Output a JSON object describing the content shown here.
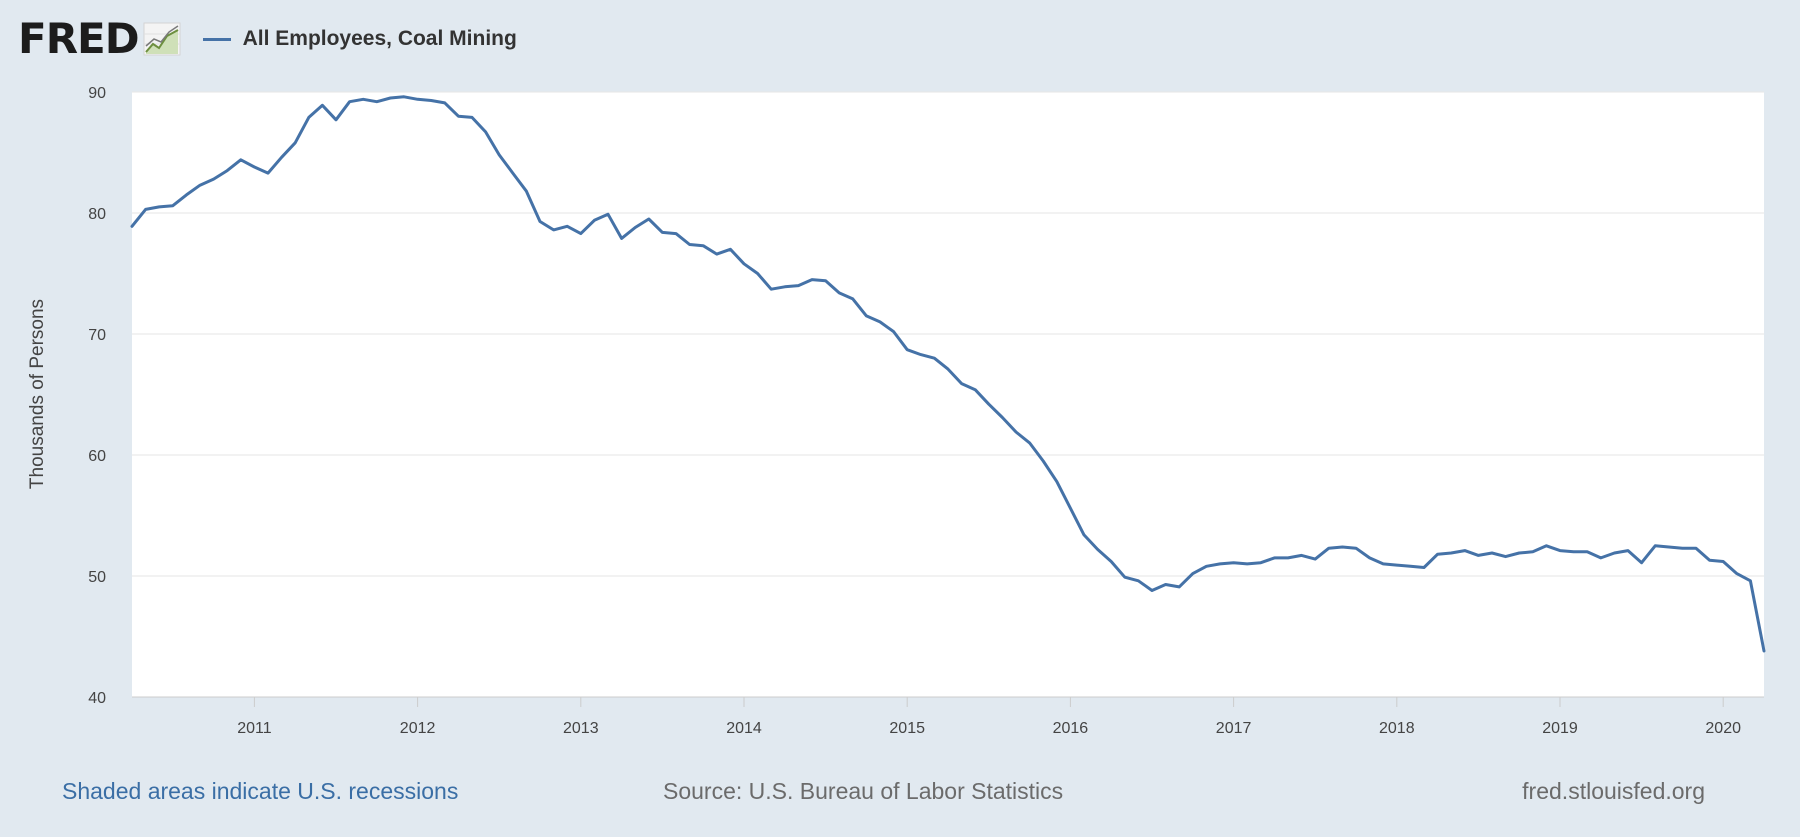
{
  "header": {
    "logo_text": "FRED",
    "logo_icon": "line-chart-icon",
    "series_title": "All Employees, Coal Mining",
    "series_color": "#4572a7"
  },
  "footer": {
    "recession_note": "Shaded areas indicate U.S. recessions",
    "source": "Source: U.S. Bureau of Labor Statistics",
    "site": "fred.stlouisfed.org"
  },
  "chart_data": {
    "type": "line",
    "title": "All Employees, Coal Mining",
    "xlabel": "",
    "ylabel": "Thousands of Persons",
    "ylim": [
      40,
      90
    ],
    "yticks": [
      40,
      50,
      60,
      70,
      80,
      90
    ],
    "xlim": [
      2010.25,
      2020.25
    ],
    "xticks": [
      2011,
      2012,
      2013,
      2014,
      2015,
      2016,
      2017,
      2018,
      2019,
      2020
    ],
    "grid": true,
    "legend": "top-left",
    "series": [
      {
        "name": "All Employees, Coal Mining",
        "color": "#4572a7",
        "start": "2010-04",
        "frequency": "monthly",
        "values": [
          78.9,
          80.3,
          80.5,
          80.6,
          81.5,
          82.3,
          82.8,
          83.5,
          84.4,
          83.8,
          83.3,
          84.6,
          85.8,
          87.9,
          88.9,
          87.7,
          89.2,
          89.4,
          89.2,
          89.5,
          89.6,
          89.4,
          89.3,
          89.1,
          88.0,
          87.9,
          86.7,
          84.8,
          83.3,
          81.8,
          79.3,
          78.6,
          78.9,
          78.3,
          79.4,
          79.9,
          77.9,
          78.8,
          79.5,
          78.4,
          78.3,
          77.4,
          77.3,
          76.6,
          77.0,
          75.8,
          75.0,
          73.7,
          73.9,
          74.0,
          74.5,
          74.4,
          73.4,
          72.9,
          71.5,
          71.0,
          70.2,
          68.7,
          68.3,
          68.0,
          67.1,
          65.9,
          65.4,
          64.2,
          63.1,
          61.9,
          61.0,
          59.5,
          57.8,
          55.6,
          53.4,
          52.2,
          51.2,
          49.9,
          49.6,
          48.8,
          49.3,
          49.1,
          50.2,
          50.8,
          51.0,
          51.1,
          51.0,
          51.1,
          51.5,
          51.5,
          51.7,
          51.4,
          52.3,
          52.4,
          52.3,
          51.5,
          51.0,
          50.9,
          50.8,
          50.7,
          51.8,
          51.9,
          52.1,
          51.7,
          51.9,
          51.6,
          51.9,
          52.0,
          52.5,
          52.1,
          52.0,
          52.0,
          51.5,
          51.9,
          52.1,
          51.1,
          52.5,
          52.4,
          52.3,
          52.3,
          51.3,
          51.2,
          50.2,
          49.6,
          43.8
        ]
      }
    ]
  }
}
